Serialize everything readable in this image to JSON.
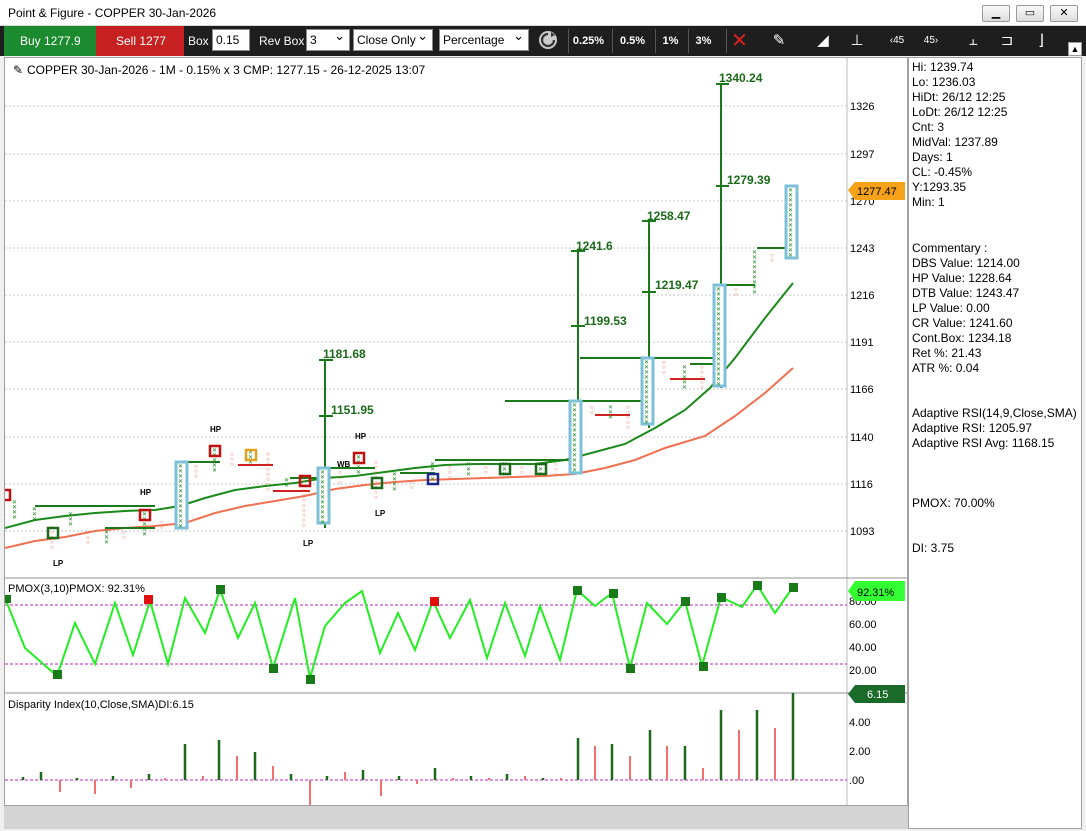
{
  "window": {
    "title": "Point & Figure - COPPER 30-Jan-2026"
  },
  "toolbar": {
    "buy_label": "Buy 1277.9",
    "sell_label": "Sell 1277",
    "box_label": "Box",
    "box_value": "0.15",
    "rev_box_label": "Rev Box",
    "rev_box_value": "3",
    "method_value": "Close Only",
    "scale_value": "Percentage",
    "pct_buttons": [
      "0.25%",
      "0.5%",
      "1%",
      "3%"
    ]
  },
  "chart_header": "COPPER 30-Jan-2026 - 1M - 0.15% x 3 CMP: 1277.15 - 26-12-2025 13:07",
  "price_axis": {
    "ticks": [
      "1326",
      "1297",
      "1270",
      "1243",
      "1216",
      "1191",
      "1166",
      "1140",
      "1116",
      "1093"
    ],
    "current_price": "1277.47"
  },
  "annotations": {
    "targets": [
      "1340.24",
      "1279.39",
      "1258.47",
      "1219.47",
      "1241.6",
      "1199.53",
      "1181.68",
      "1151.95"
    ],
    "markers": [
      "HP",
      "HP",
      "HP",
      "LP",
      "LP",
      "LP",
      "WB"
    ]
  },
  "pmox": {
    "label": "PMOX(3,10)PMOX: 92.31%",
    "ticks": [
      "80.00",
      "60.00",
      "40.00",
      "20.00"
    ],
    "current": "92.31%"
  },
  "disparity": {
    "label": "Disparity Index(10,Close,SMA)DI:6.15",
    "ticks": [
      "4.00",
      "2.00",
      ".00"
    ],
    "current": "6.15"
  },
  "info_panel": {
    "lines": [
      "Hi: 1239.74",
      "Lo: 1236.03",
      "HiDt: 26/12 12:25",
      "LoDt: 26/12 12:25",
      "Cnt: 3",
      "MidVal: 1237.89",
      "Days: 1",
      "CL: -0.45%",
      "Y:1293.35",
      "Min: 1"
    ],
    "commentary": [
      "Commentary :",
      "DBS Value:  1214.00",
      "HP Value: 1228.64",
      "DTB Value: 1243.47",
      "LP Value: 0.00",
      "CR Value: 1241.60",
      "Cont.Box: 1234.18",
      "Ret %: 21.43",
      "ATR %: 0.04"
    ],
    "rsi": [
      "Adaptive RSI(14,9,Close,SMA)",
      "Adaptive RSI: 1205.97",
      "Adaptive RSI Avg: 1168.15"
    ],
    "pmox_line": "PMOX: 70.00%",
    "di_line": "DI: 3.75"
  },
  "colors": {
    "up": "#1a7a1a",
    "down": "#e85a3c",
    "buy": "#1c8a2e",
    "sell": "#c62020",
    "rsi": "#1ea01e",
    "rsi_avg": "#f07050",
    "pmox_line": "#22ee22",
    "highlight": "#7ec0d8"
  }
}
